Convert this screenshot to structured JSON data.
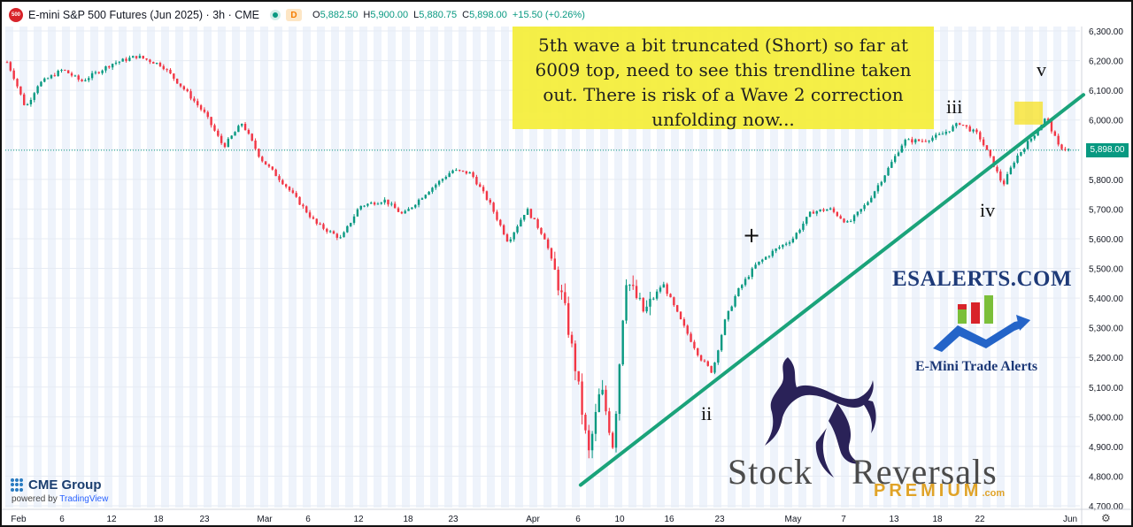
{
  "header": {
    "symbol_badge": "500",
    "title": "E-mini S&P 500 Futures (Jun 2025) · 3h · CME",
    "d_badge": "D",
    "ohlc": [
      {
        "k": "O",
        "v": "5,882.50"
      },
      {
        "k": "H",
        "v": "5,900.00"
      },
      {
        "k": "L",
        "v": "5,880.75"
      },
      {
        "k": "C",
        "v": "5,898.00"
      }
    ],
    "change": "+15.50 (+0.26%)"
  },
  "annotations": {
    "note_lines": [
      "5th wave a bit truncated (Short) so far at",
      "6009 top, need to see this trendline taken",
      "out. There is risk of a Wave 2 correction",
      "unfolding now..."
    ],
    "waves": {
      "ii": "ii",
      "iii": "iii",
      "iv": "iv",
      "v": "v"
    },
    "plus": "+"
  },
  "branding": {
    "esalerts": "ESALERTS.COM",
    "emini_trade_alerts": "E-Mini Trade Alerts",
    "stock": "Stock",
    "reversals": "Reversals",
    "premium": "PREMIUM",
    "dotcom": ".com",
    "cme": "CME Group",
    "powered_prefix": "powered by ",
    "powered_brand": "TradingView"
  },
  "colors": {
    "up": "#089981",
    "down": "#f23645",
    "trendline": "#1aa37a",
    "note_bg": "#f5ee3a",
    "highlight": "#f5e020",
    "grid": "#dce6f5"
  },
  "last_price_tag": "5,898.00",
  "chart_data": {
    "type": "candlestick",
    "title": "E-mini S&P 500 Futures (Jun 2025) · 3h · CME",
    "ylim": [
      4700,
      6300
    ],
    "y_ticks": [
      "6,300.00",
      "6,200.00",
      "6,100.00",
      "6,000.00",
      "5,900.00",
      "5,800.00",
      "5,700.00",
      "5,600.00",
      "5,500.00",
      "5,400.00",
      "5,300.00",
      "5,200.00",
      "5,100.00",
      "5,000.00",
      "4,900.00",
      "4,800.00",
      "4,700.00"
    ],
    "x_ticks": [
      "Feb",
      "6",
      "12",
      "18",
      "23",
      "Mar",
      "6",
      "12",
      "18",
      "23",
      "Apr",
      "6",
      "10",
      "16",
      "23",
      "May",
      "7",
      "13",
      "18",
      "22",
      "Jun"
    ],
    "path": [
      {
        "t": 0,
        "p": 6195
      },
      {
        "t": 1,
        "p": 6150
      },
      {
        "t": 3,
        "p": 6040
      },
      {
        "t": 5,
        "p": 6120
      },
      {
        "t": 9,
        "p": 6170
      },
      {
        "t": 12,
        "p": 6130
      },
      {
        "t": 17,
        "p": 6190
      },
      {
        "t": 21,
        "p": 6215
      },
      {
        "t": 25,
        "p": 6185
      },
      {
        "t": 29,
        "p": 6095
      },
      {
        "t": 32,
        "p": 6020
      },
      {
        "t": 35,
        "p": 5910
      },
      {
        "t": 38,
        "p": 5990
      },
      {
        "t": 41,
        "p": 5870
      },
      {
        "t": 45,
        "p": 5780
      },
      {
        "t": 50,
        "p": 5650
      },
      {
        "t": 54,
        "p": 5600
      },
      {
        "t": 57,
        "p": 5710
      },
      {
        "t": 61,
        "p": 5730
      },
      {
        "t": 64,
        "p": 5680
      },
      {
        "t": 68,
        "p": 5760
      },
      {
        "t": 72,
        "p": 5830
      },
      {
        "t": 75,
        "p": 5820
      },
      {
        "t": 78,
        "p": 5720
      },
      {
        "t": 81,
        "p": 5590
      },
      {
        "t": 84,
        "p": 5700
      },
      {
        "t": 87,
        "p": 5600
      },
      {
        "t": 90,
        "p": 5380
      },
      {
        "t": 92,
        "p": 5150
      },
      {
        "t": 94,
        "p": 4870
      },
      {
        "t": 96,
        "p": 5100
      },
      {
        "t": 98,
        "p": 4900
      },
      {
        "t": 100,
        "p": 5470
      },
      {
        "t": 103,
        "p": 5350
      },
      {
        "t": 106,
        "p": 5450
      },
      {
        "t": 109,
        "p": 5320
      },
      {
        "t": 112,
        "p": 5200
      },
      {
        "t": 114,
        "p": 5150
      },
      {
        "t": 116,
        "p": 5320
      },
      {
        "t": 118,
        "p": 5420
      },
      {
        "t": 121,
        "p": 5510
      },
      {
        "t": 124,
        "p": 5560
      },
      {
        "t": 127,
        "p": 5600
      },
      {
        "t": 130,
        "p": 5690
      },
      {
        "t": 133,
        "p": 5700
      },
      {
        "t": 136,
        "p": 5650
      },
      {
        "t": 139,
        "p": 5720
      },
      {
        "t": 142,
        "p": 5820
      },
      {
        "t": 145,
        "p": 5930
      },
      {
        "t": 148,
        "p": 5930
      },
      {
        "t": 151,
        "p": 5950
      },
      {
        "t": 154,
        "p": 5990
      },
      {
        "t": 157,
        "p": 5950
      },
      {
        "t": 159,
        "p": 5870
      },
      {
        "t": 161,
        "p": 5780
      },
      {
        "t": 163,
        "p": 5870
      },
      {
        "t": 166,
        "p": 5950
      },
      {
        "t": 168,
        "p": 6009
      },
      {
        "t": 170,
        "p": 5910
      },
      {
        "t": 172,
        "p": 5898
      }
    ],
    "last_price": 5898.0,
    "trendline": [
      {
        "t": 93,
        "p": 4770
      },
      {
        "t": 170,
        "p": 6055
      }
    ],
    "labels": [
      {
        "text": "ii",
        "t": 114,
        "p": 5000
      },
      {
        "text": "iii",
        "t": 152,
        "p": 6030
      },
      {
        "t": 160,
        "p": 5700,
        "text": "iv"
      },
      {
        "t": 168,
        "p": 6160,
        "text": "v"
      }
    ]
  }
}
